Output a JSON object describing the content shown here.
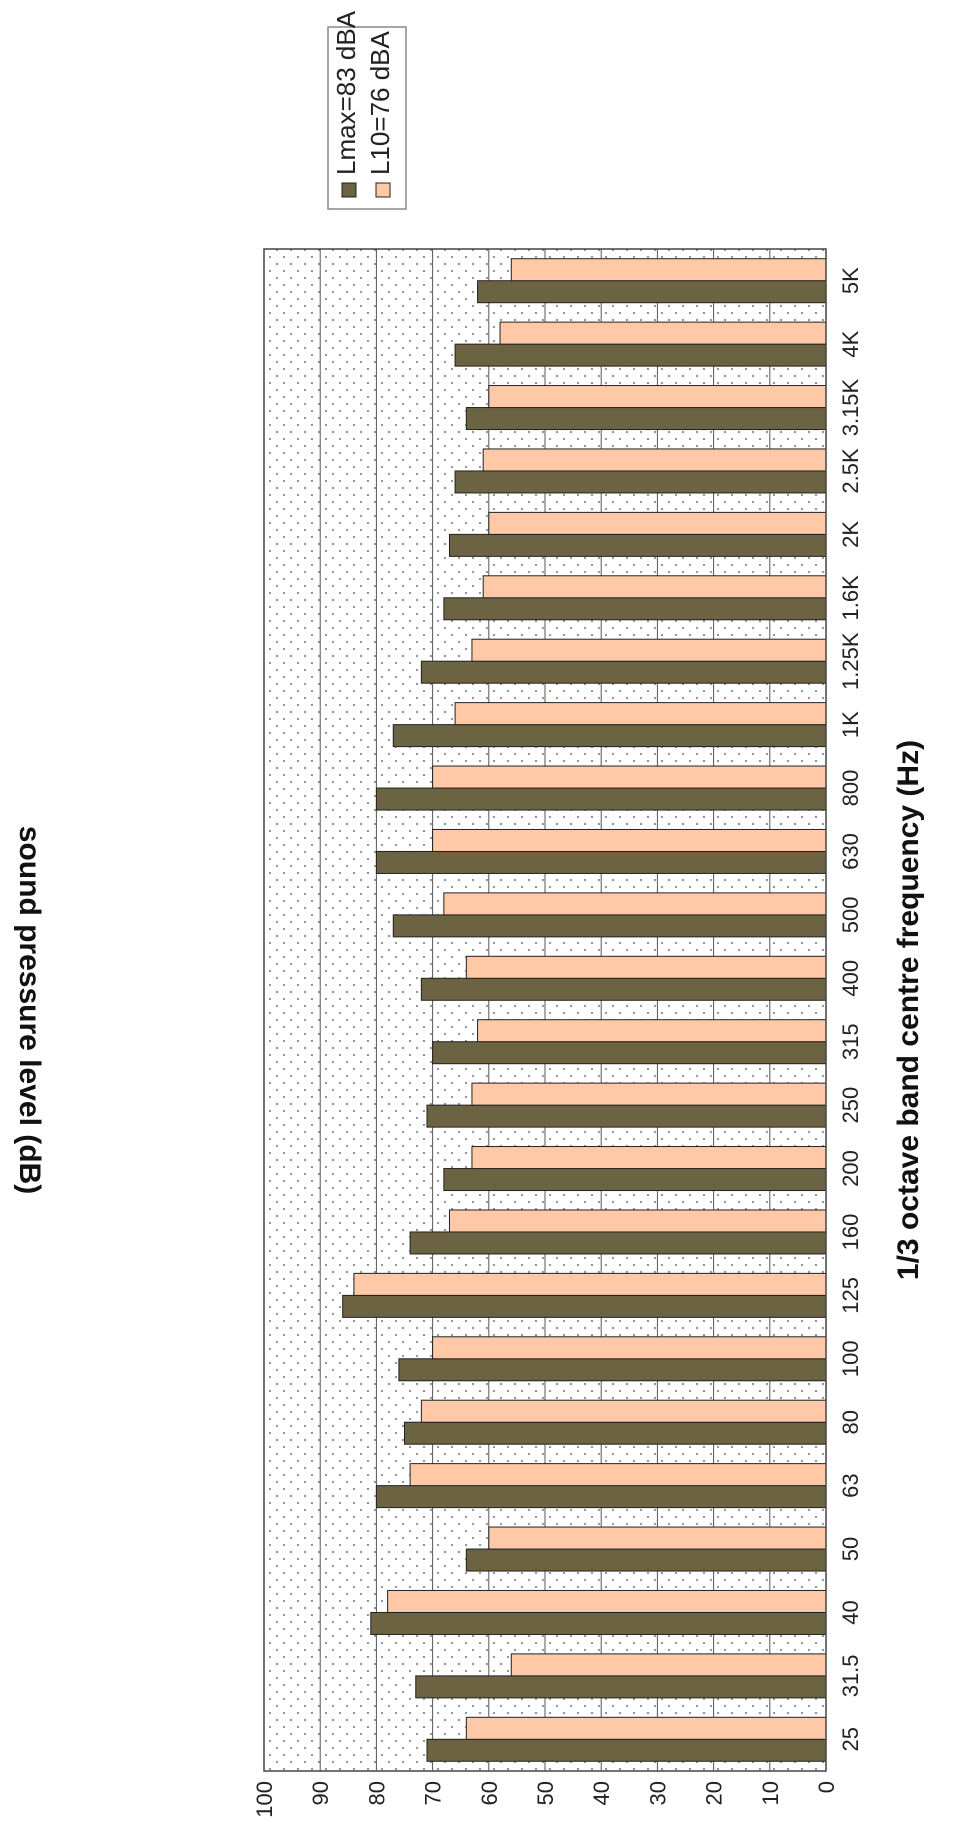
{
  "chart_data": {
    "type": "bar",
    "xlabel": "1/3 octave band centre frequency (Hz)",
    "ylabel": "sound pressure level (dB)",
    "ylim": [
      0,
      100
    ],
    "yticks": [
      "0",
      "10",
      "20",
      "30",
      "40",
      "50",
      "60",
      "70",
      "80",
      "90",
      "100"
    ],
    "grid": true,
    "legend_position": "right",
    "categories": [
      "25",
      "31.5",
      "40",
      "50",
      "63",
      "80",
      "100",
      "125",
      "160",
      "200",
      "250",
      "315",
      "400",
      "500",
      "630",
      "800",
      "1K",
      "1.25K",
      "1.6K",
      "2K",
      "2.5K",
      "3.15K",
      "4K",
      "5K"
    ],
    "series": [
      {
        "name": "Lmax=83 dBA",
        "color": "#6b6341",
        "values": [
          71,
          73,
          81,
          64,
          80,
          75,
          76,
          86,
          74,
          68,
          71,
          70,
          72,
          77,
          80,
          80,
          77,
          72,
          68,
          67,
          66,
          64,
          66,
          62
        ]
      },
      {
        "name": "L10=76 dBA",
        "color": "#ffc9a8",
        "values": [
          64,
          56,
          78,
          60,
          74,
          72,
          70,
          84,
          67,
          63,
          63,
          62,
          64,
          68,
          70,
          70,
          66,
          63,
          61,
          60,
          61,
          60,
          58,
          56
        ]
      }
    ]
  }
}
